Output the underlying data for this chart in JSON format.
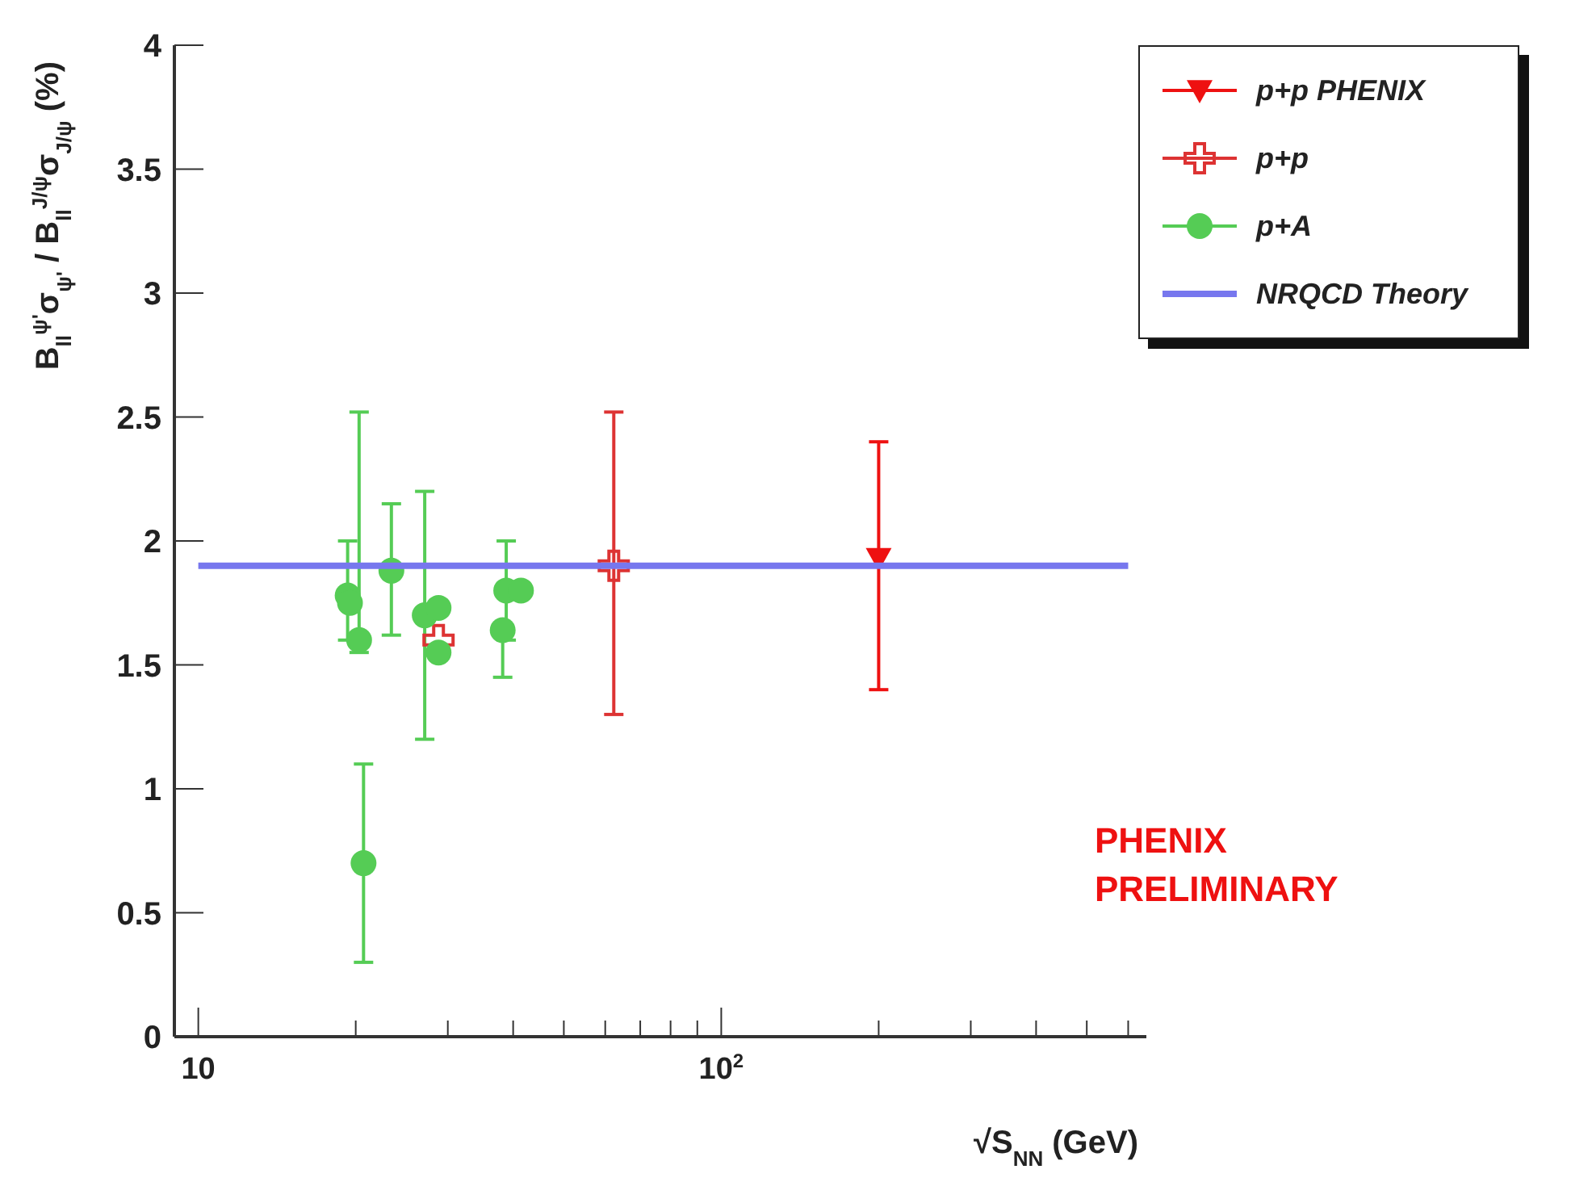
{
  "chart_data": {
    "type": "scatter",
    "xlabel": "√S$_{NN}$  (GeV)",
    "ylabel": "B$_{ll}$$^{ψ'}$σ$_{ψ'}$ / B$_{ll}$$^{J/ψ}$σ$_{J/ψ}$  (%)",
    "log": "x",
    "xlim": [
      9,
      650
    ],
    "xticks": [
      10,
      {
        "value": 20,
        "label": null
      },
      {
        "value": 30,
        "label": null
      },
      {
        "value": 40,
        "label": null
      },
      {
        "value": 50,
        "label": null
      },
      {
        "value": 60,
        "label": null
      },
      {
        "value": 70,
        "label": null
      },
      {
        "value": 80,
        "label": null
      },
      {
        "value": 90,
        "label": null
      },
      {
        "value": 100,
        "label": "10$^{2}$"
      },
      {
        "value": 200,
        "label": null
      },
      {
        "value": 300,
        "label": null
      },
      {
        "value": 400,
        "label": null
      },
      {
        "value": 500,
        "label": null
      },
      {
        "value": 600,
        "label": null
      }
    ],
    "ylim": [
      0,
      4
    ],
    "yticks": [
      0,
      0.5,
      1,
      1.5,
      2,
      2.5,
      3,
      3.5,
      4
    ],
    "legend": "top right",
    "annotations": [
      "PHENIX\nPRELIMINARY"
    ],
    "series": [
      {
        "name": "p+p PHENIX",
        "color": "#ee1111",
        "marker": "triangle",
        "x": [
          200
        ],
        "values": [
          1.93
        ],
        "errors": [
          [
            1.4,
            2.4
          ]
        ]
      },
      {
        "name": "p+p",
        "color": "#dd3333",
        "marker": "cross",
        "x": [
          28.8,
          62.3
        ],
        "values": [
          1.6,
          1.9
        ],
        "errors": [
          null,
          [
            1.3,
            2.52
          ]
        ]
      },
      {
        "name": "p+A",
        "color": "#55cc55",
        "marker": "circle",
        "x": [
          19.3,
          19.5,
          20.3,
          20.7,
          23.4,
          27.1,
          28.8,
          28.8,
          38.2,
          38.8,
          41.4
        ],
        "values": [
          1.78,
          1.75,
          1.6,
          0.7,
          1.88,
          1.7,
          1.73,
          1.55,
          1.64,
          1.8,
          1.8
        ],
        "errors": [
          [
            1.6,
            2.0
          ],
          null,
          [
            1.55,
            2.52
          ],
          [
            0.3,
            1.1
          ],
          [
            1.62,
            2.15
          ],
          [
            1.2,
            2.2
          ],
          null,
          null,
          [
            1.45,
            1.64
          ],
          [
            1.6,
            2.0
          ],
          null
        ]
      },
      {
        "name": "NRQCD Theory",
        "type": "line",
        "color": "#7777ee",
        "marker": "none",
        "x": [
          10,
          600
        ],
        "values": [
          1.9,
          1.9
        ]
      }
    ]
  }
}
